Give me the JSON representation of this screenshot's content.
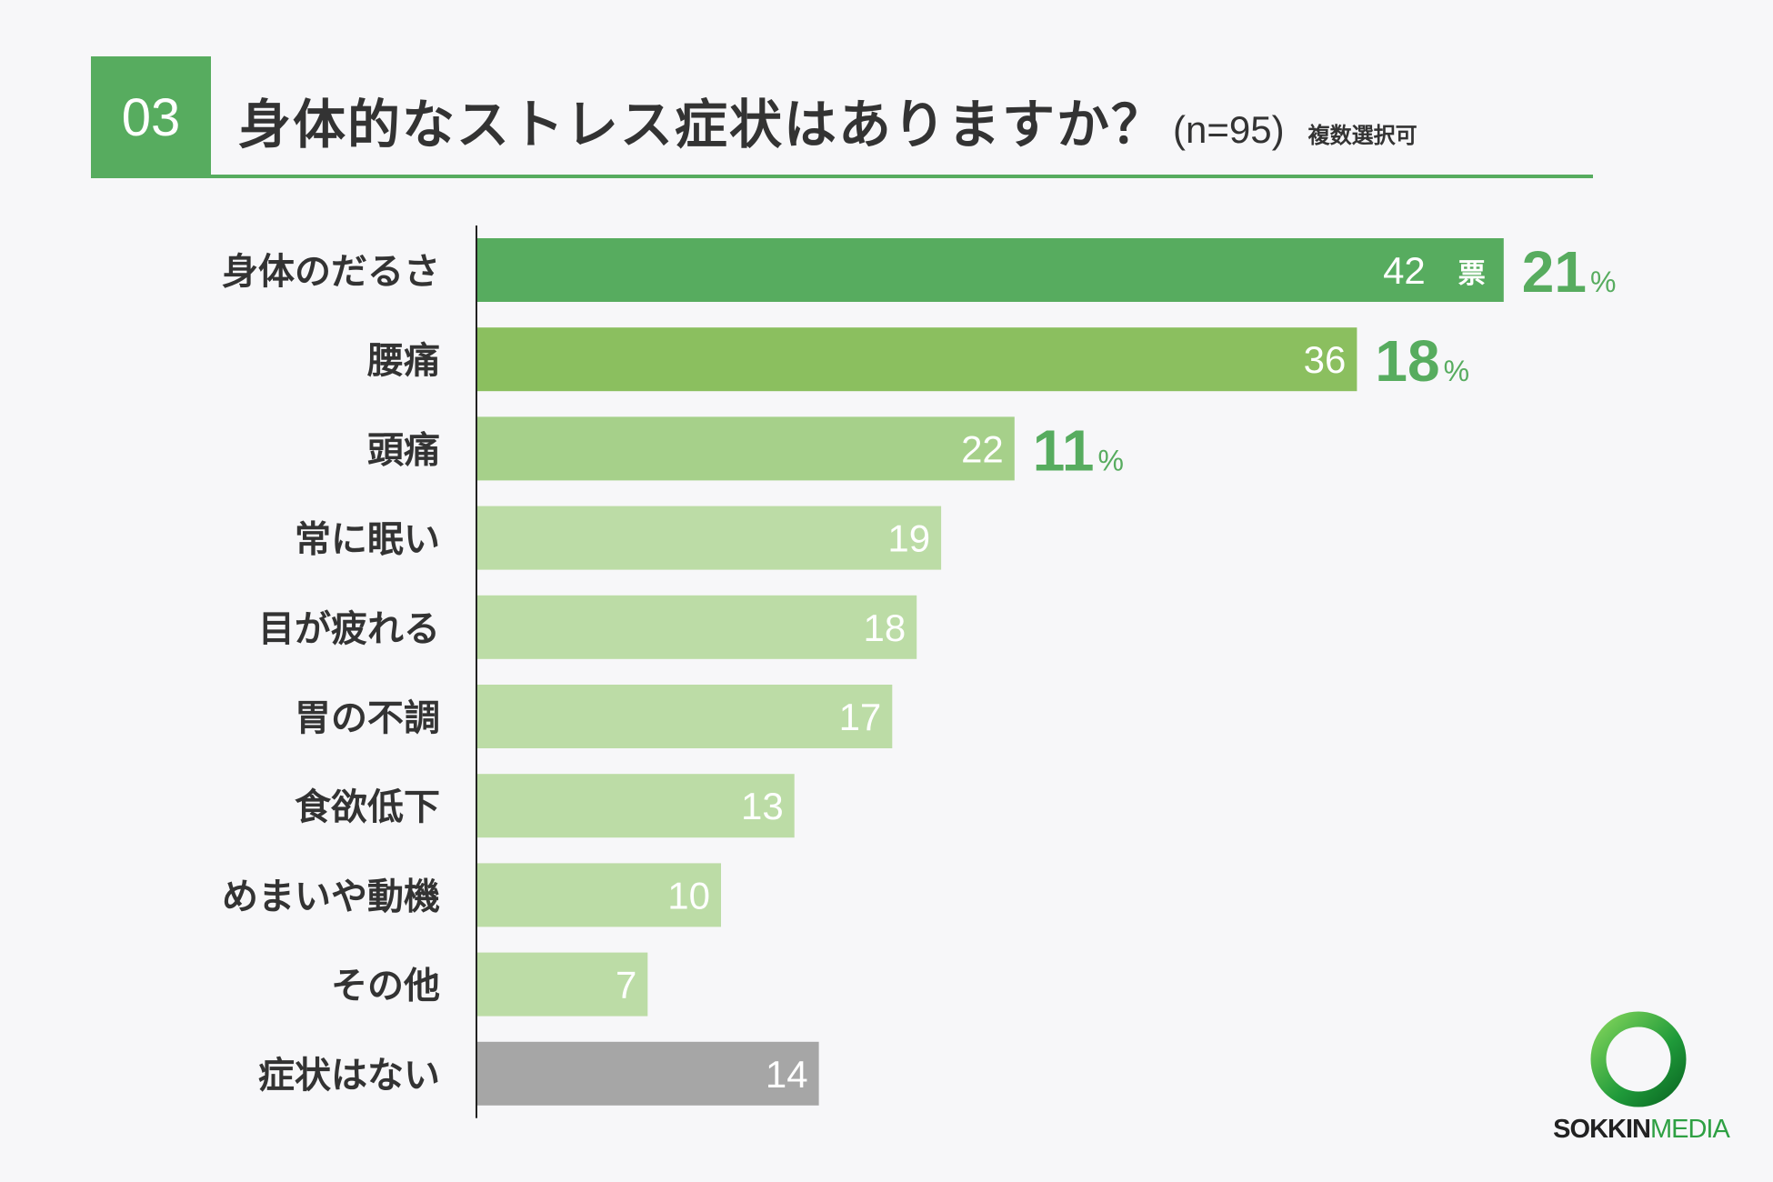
{
  "header": {
    "number": "03",
    "title": "身体的なストレス症状はありますか？",
    "sample": "(n=95)",
    "note": "複数選択可"
  },
  "colors": {
    "accent": "#57ac5f",
    "bar_1": "#57ac5f",
    "bar_2": "#8bbf5f",
    "bar_3": "#a6d08a",
    "bar_rest": "#bcdca6",
    "bar_none": "#a6a6a6",
    "value_text": "#ffffff",
    "category_text": "#333333",
    "axis": "#222222"
  },
  "chart_data": {
    "type": "bar",
    "orientation": "horizontal",
    "categories": [
      "身体のだるさ",
      "腰痛",
      "頭痛",
      "常に眠い",
      "目が疲れる",
      "胃の不調",
      "食欲低下",
      "めまいや動機",
      "その他",
      "症状はない"
    ],
    "values": [
      42,
      36,
      22,
      19,
      18,
      17,
      13,
      10,
      7,
      14
    ],
    "value_labels": [
      "42",
      "36",
      "22",
      "19",
      "18",
      "17",
      "13",
      "10",
      "7",
      "14"
    ],
    "value_unit": "票",
    "percents": [
      "21",
      "18",
      "11"
    ],
    "percent_unit": "%",
    "xlim": [
      0,
      42
    ],
    "grid": false,
    "legend": "none"
  },
  "logo": {
    "icon": "green-ring-icon",
    "text_part1": "SOKKIN",
    "text_part2": "MEDIA"
  }
}
